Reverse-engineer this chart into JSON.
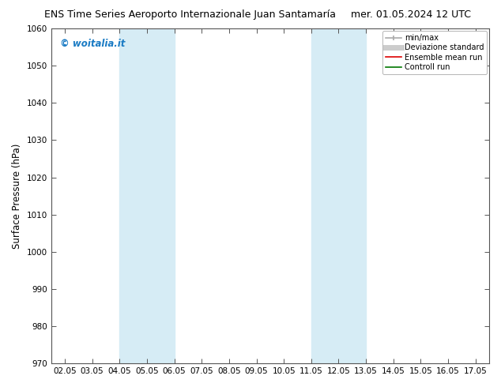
{
  "title_left": "ENS Time Series Aeroporto Internazionale Juan Santamaría",
  "title_right": "mer. 01.05.2024 12 UTC",
  "ylabel": "Surface Pressure (hPa)",
  "ylim": [
    970,
    1060
  ],
  "yticks": [
    970,
    980,
    990,
    1000,
    1010,
    1020,
    1030,
    1040,
    1050,
    1060
  ],
  "xlim": [
    0,
    15
  ],
  "xtick_labels": [
    "02.05",
    "03.05",
    "04.05",
    "05.05",
    "06.05",
    "07.05",
    "08.05",
    "09.05",
    "10.05",
    "11.05",
    "12.05",
    "13.05",
    "14.05",
    "15.05",
    "16.05",
    "17.05"
  ],
  "xtick_positions": [
    0,
    1,
    2,
    3,
    4,
    5,
    6,
    7,
    8,
    9,
    10,
    11,
    12,
    13,
    14,
    15
  ],
  "bg_color": "#ffffff",
  "plot_bg_color": "#ffffff",
  "shaded_bands": [
    {
      "x_start": 2,
      "x_end": 4
    },
    {
      "x_start": 9,
      "x_end": 11
    }
  ],
  "shade_color": "#d6ecf5",
  "watermark_text": "© woitalia.it",
  "watermark_color": "#1a7bc4",
  "legend_items": [
    {
      "label": "min/max",
      "color": "#aaaaaa",
      "lw": 1.2,
      "style": "-"
    },
    {
      "label": "Deviazione standard",
      "color": "#cccccc",
      "lw": 5,
      "style": "-"
    },
    {
      "label": "Ensemble mean run",
      "color": "#dd0000",
      "lw": 1.2,
      "style": "-"
    },
    {
      "label": "Controll run",
      "color": "#007700",
      "lw": 1.2,
      "style": "-"
    }
  ],
  "title_fontsize": 9,
  "tick_fontsize": 7.5,
  "ylabel_fontsize": 8.5
}
